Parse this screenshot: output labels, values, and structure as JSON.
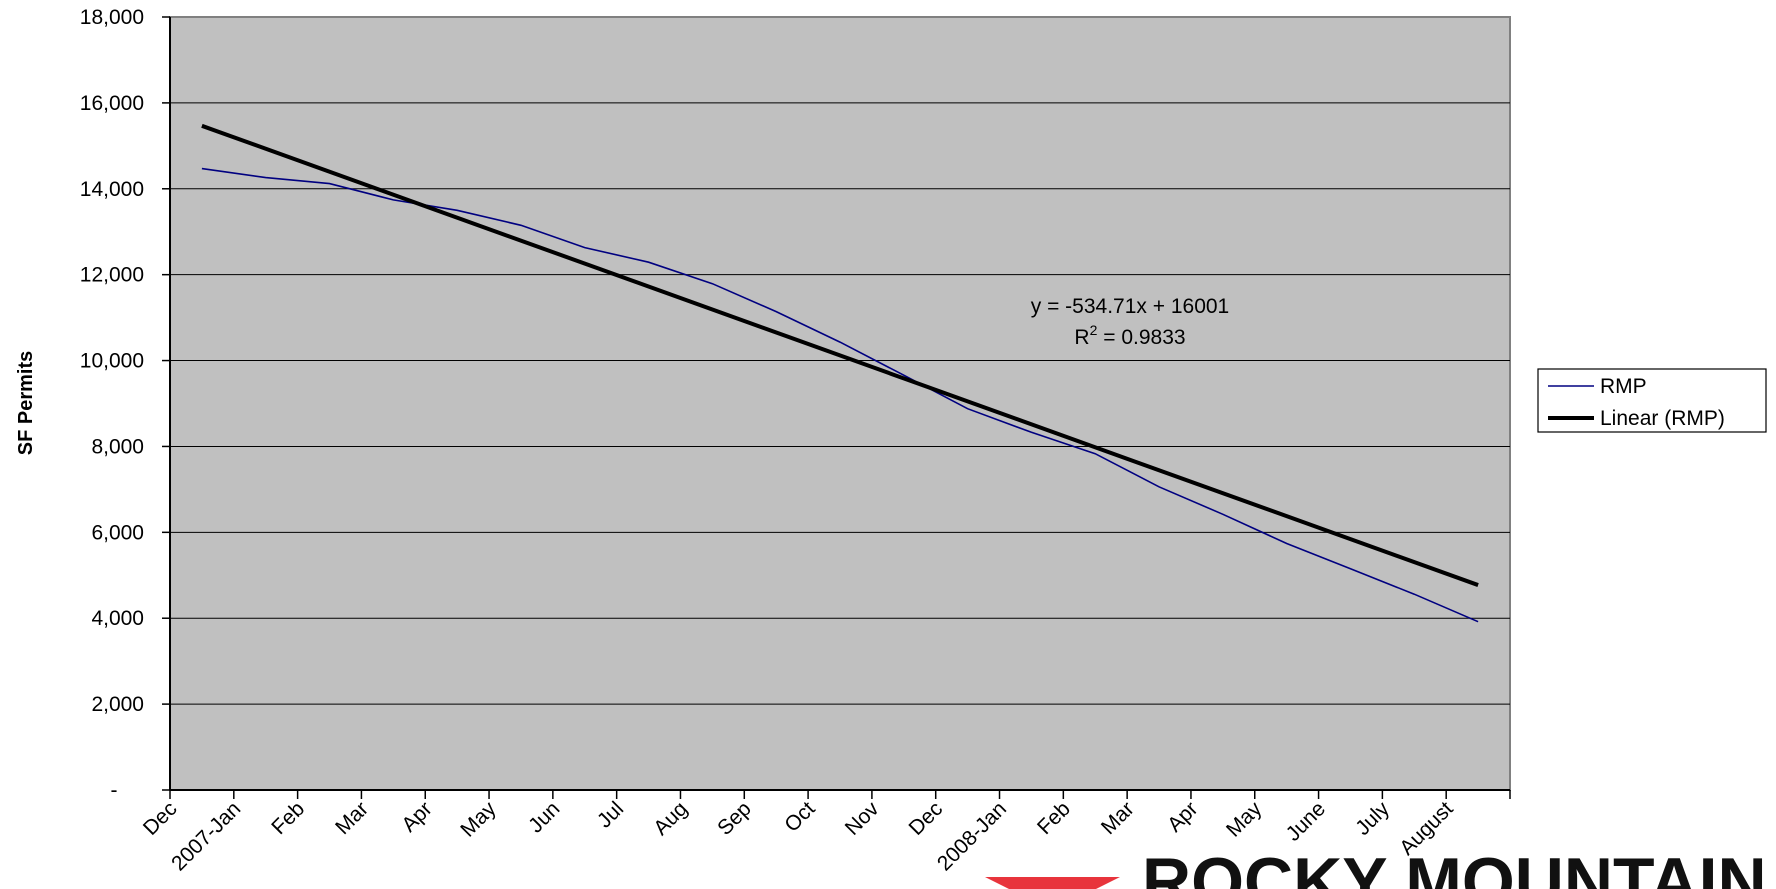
{
  "chart_data": {
    "type": "line",
    "title": "",
    "xlabel": "",
    "ylabel": "SF Permits",
    "categories": [
      "Dec",
      "2007-Jan",
      "Feb",
      "Mar",
      "Apr",
      "May",
      "Jun",
      "Jul",
      "Aug",
      "Sep",
      "Oct",
      "Nov",
      "Dec",
      "2008-Jan",
      "Feb",
      "Mar",
      "Apr",
      "May",
      "June",
      "July",
      "August"
    ],
    "ylim": [
      0,
      18000
    ],
    "yticks": [
      0,
      2000,
      4000,
      6000,
      8000,
      10000,
      12000,
      14000,
      16000,
      18000
    ],
    "ytick_labels": [
      "-",
      "2,000",
      "4,000",
      "6,000",
      "8,000",
      "10,000",
      "12,000",
      "14,000",
      "16,000",
      "18,000"
    ],
    "grid": true,
    "plot_background": "#c0c0c0",
    "series": [
      {
        "name": "RMP",
        "color": "#000080",
        "x": [
          1,
          2,
          3,
          4,
          5,
          6,
          7,
          8,
          9,
          10,
          11,
          12,
          13,
          14,
          15,
          16,
          17,
          18,
          19,
          20,
          21
        ],
        "values": [
          14470,
          14260,
          14120,
          13740,
          13500,
          13150,
          12630,
          12290,
          11790,
          11140,
          10430,
          9660,
          8880,
          8330,
          7830,
          7060,
          6420,
          5740,
          5150,
          4560,
          3920
        ]
      }
    ],
    "trendline": {
      "name": "Linear (RMP)",
      "color": "#000000",
      "slope": -534.71,
      "intercept": 16001,
      "x_range": [
        1,
        21
      ]
    },
    "annotations": {
      "equation": "y = -534.71x + 16001",
      "r2_prefix": "R",
      "r2_sup": "2",
      "r2_value": " = 0.9833"
    },
    "legend": {
      "position": "right",
      "entries": [
        "RMP",
        "Linear (RMP)"
      ]
    }
  },
  "logo": {
    "text": "ROCKY MOUNTAIN",
    "color": "#e8343c"
  }
}
